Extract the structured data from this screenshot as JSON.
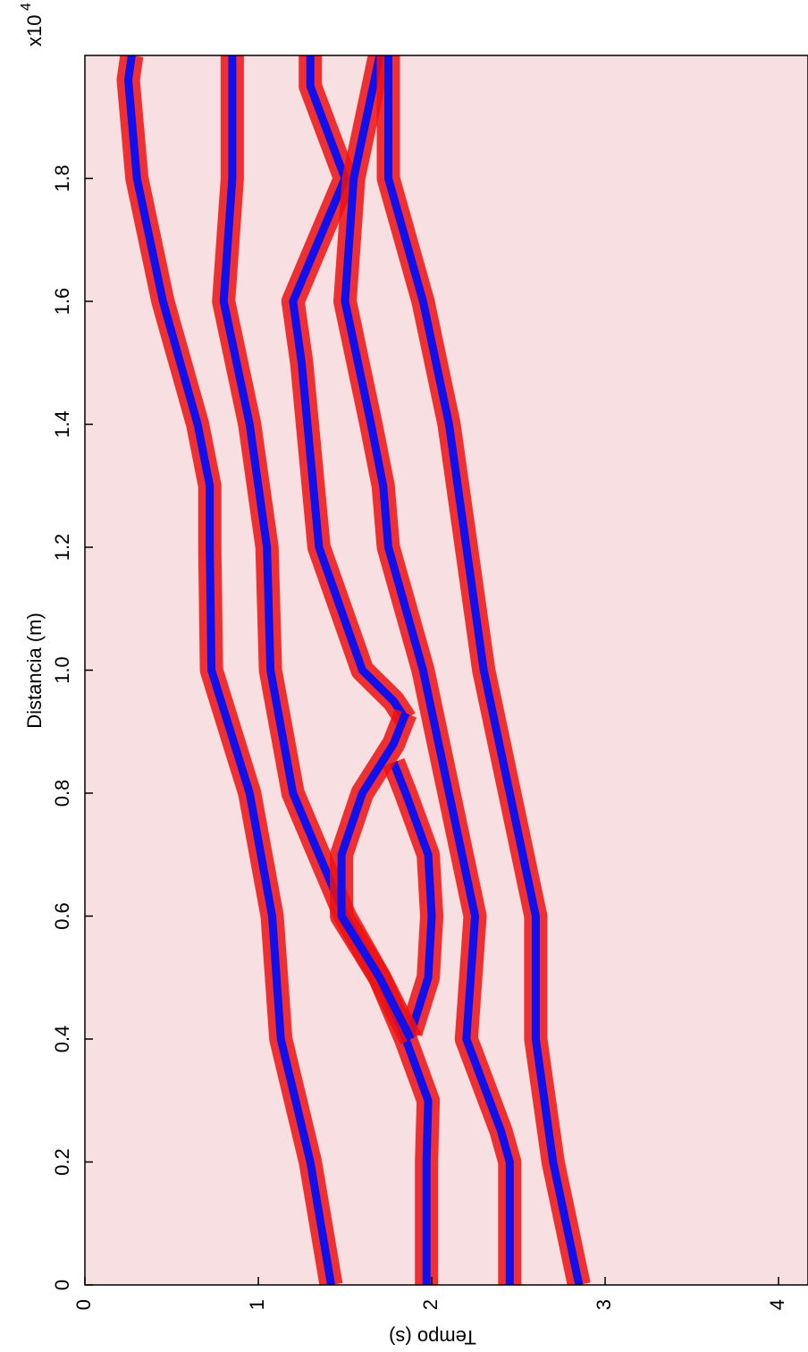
{
  "chart_data": {
    "type": "line",
    "xlabel": "Tempo (s)",
    "ylabel": "Distancia (m)",
    "y_multiplier": "x10",
    "y_multiplier_exp": "4",
    "xlim": [
      0,
      4.17
    ],
    "ylim": [
      0,
      2.0
    ],
    "xticks": [
      0,
      1,
      2,
      3,
      4
    ],
    "yticks": [
      0,
      0.2,
      0.4,
      0.6,
      0.8,
      {
        "value": 1,
        "label": "1.0"
      },
      1.2,
      1.4,
      1.6,
      1.8
    ],
    "background": "#f7dfe2",
    "halo_color": "#ee1111",
    "series": [
      {
        "color": "#1010ee",
        "x": [
          1.42,
          1.3,
          1.13,
          1.08,
          0.95,
          0.73,
          0.72,
          0.72,
          0.65,
          0.45,
          0.3,
          0.25,
          0.27
        ],
        "values": [
          0,
          0.2,
          0.4,
          0.6,
          0.8,
          1.0,
          1.2,
          1.3,
          1.4,
          1.6,
          1.8,
          1.96,
          2.0
        ]
      },
      {
        "color": "#1010ee",
        "x": [
          1.97,
          1.97,
          1.98,
          1.85,
          1.7,
          1.5,
          1.2,
          1.07,
          1.05,
          1.0,
          0.95,
          0.8,
          0.85,
          0.85
        ],
        "values": [
          0,
          0.2,
          0.3,
          0.4,
          0.5,
          0.6,
          0.8,
          1.0,
          1.2,
          1.3,
          1.4,
          1.6,
          1.8,
          2.0
        ]
      },
      {
        "color": "#1010ee",
        "x": [
          1.85,
          1.78,
          1.6,
          1.35,
          1.3,
          1.25,
          1.2,
          1.5,
          1.3,
          1.3
        ],
        "values": [
          0.92,
          0.95,
          1.0,
          1.2,
          1.35,
          1.5,
          1.6,
          1.8,
          1.95,
          2.0
        ]
      },
      {
        "color": "#1010ee",
        "x": [
          1.88,
          1.98,
          2.0,
          1.98,
          1.85,
          1.78
        ],
        "values": [
          0.41,
          0.5,
          0.6,
          0.7,
          0.8,
          0.85
        ]
      },
      {
        "color": "#1010ee",
        "x": [
          1.88,
          1.7,
          1.48,
          1.48,
          1.6,
          1.78,
          1.85
        ],
        "values": [
          0.4,
          0.5,
          0.6,
          0.7,
          0.8,
          0.88,
          0.93
        ]
      },
      {
        "color": "#1010ee",
        "x": [
          2.45,
          2.45,
          2.4,
          2.2,
          2.25,
          2.1,
          1.95,
          1.75,
          1.72,
          1.65,
          1.5,
          1.55,
          1.7
        ],
        "values": [
          0,
          0.2,
          0.25,
          0.4,
          0.6,
          0.8,
          1.0,
          1.2,
          1.3,
          1.4,
          1.6,
          1.8,
          2.0
        ]
      },
      {
        "color": "#1010ee",
        "x": [
          2.85,
          2.7,
          2.6,
          2.6,
          2.45,
          2.3,
          2.2,
          2.1,
          1.95,
          1.75,
          1.75
        ],
        "values": [
          0,
          0.2,
          0.4,
          0.6,
          0.8,
          1.0,
          1.2,
          1.4,
          1.6,
          1.8,
          2.0
        ]
      }
    ]
  }
}
